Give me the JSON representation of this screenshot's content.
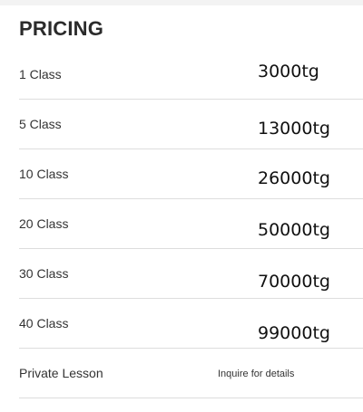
{
  "section": {
    "title": "PRICING"
  },
  "pricing": [
    {
      "name": "1 Class",
      "price": "3000tg"
    },
    {
      "name": "5 Class",
      "price": "13000tg"
    },
    {
      "name": "10 Class",
      "price": "26000tg"
    },
    {
      "name": "20 Class",
      "price": "50000tg"
    },
    {
      "name": "30 Class",
      "price": "70000tg"
    },
    {
      "name": "40 Class",
      "price": "99000tg"
    },
    {
      "name": "Private Lesson",
      "price": "Inquire for details"
    }
  ]
}
